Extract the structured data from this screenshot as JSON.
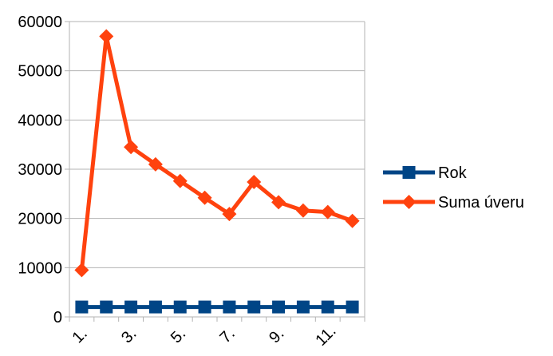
{
  "chart_data": {
    "type": "line",
    "x": [
      "1.",
      "2.",
      "3.",
      "4.",
      "5.",
      "6.",
      "7.",
      "8.",
      "9.",
      "10.",
      "11.",
      "12."
    ],
    "x_tick_labels": [
      "1.",
      "3.",
      "5.",
      "7.",
      "9.",
      "11."
    ],
    "ylim": [
      0,
      60000
    ],
    "y_ticks": [
      "0",
      "10000",
      "20000",
      "30000",
      "40000",
      "50000",
      "60000"
    ],
    "grid": "horizontal",
    "legend_position": "right",
    "series": [
      {
        "name": "Rok",
        "color": "#004586",
        "marker": "square",
        "values": [
          2013,
          2013,
          2013,
          2013,
          2013,
          2013,
          2013,
          2013,
          2013,
          2013,
          2013,
          2013
        ]
      },
      {
        "name": "Suma úveru",
        "color": "#FF420E",
        "marker": "diamond",
        "values": [
          9500,
          57000,
          34500,
          31000,
          27600,
          24200,
          20900,
          27400,
          23300,
          21600,
          21300,
          19500
        ]
      }
    ]
  }
}
